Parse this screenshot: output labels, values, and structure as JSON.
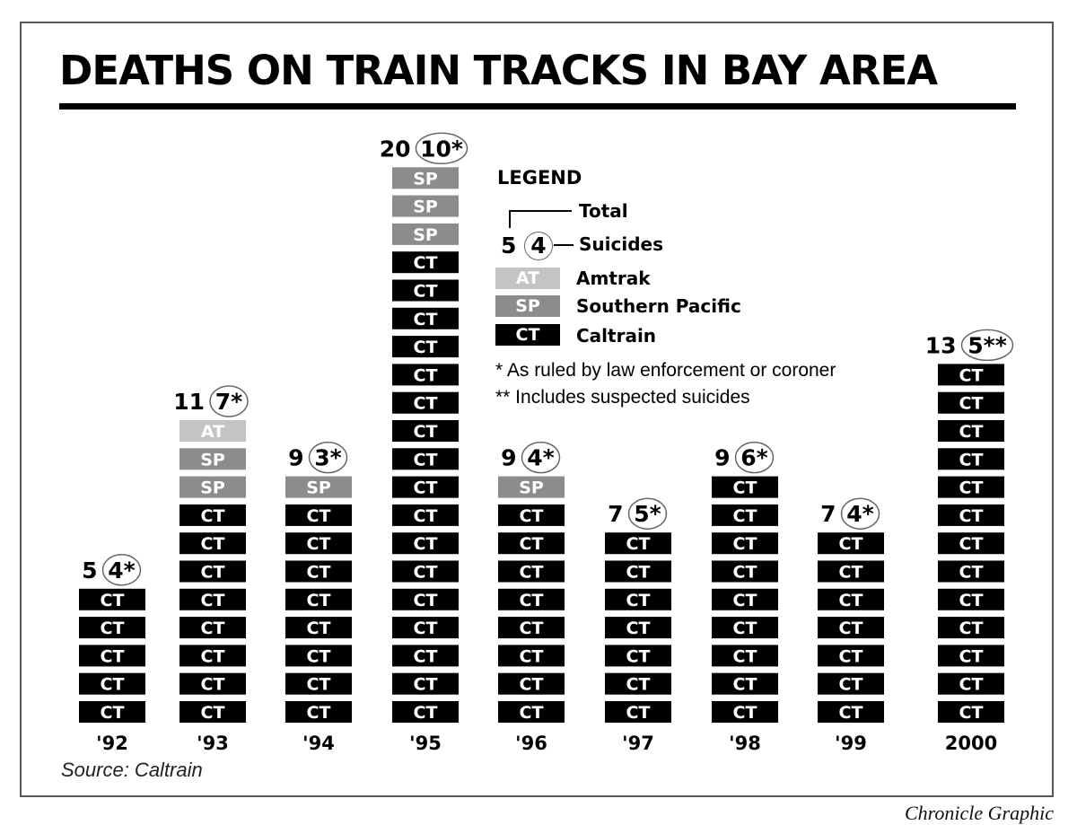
{
  "header": {
    "title": "DEATHS ON TRAIN TRACKS IN BAY AREA"
  },
  "footer": {
    "source": "Source: Caltrain",
    "credit": "Chronicle Graphic"
  },
  "legend": {
    "title": "LEGEND",
    "total_label": "Total",
    "suicides_label": "Suicides",
    "sample_total": "5",
    "sample_suicides": "4",
    "items": [
      {
        "code": "AT",
        "label": "Amtrak"
      },
      {
        "code": "SP",
        "label": "Southern Pacific"
      },
      {
        "code": "CT",
        "label": "Caltrain"
      }
    ],
    "notes": [
      "* As ruled by law enforcement or coroner",
      "** Includes suspected suicides"
    ]
  },
  "colors": {
    "CT": "#000000",
    "SP": "#8c8c8c",
    "AT": "#c4c4c4",
    "text_on_block": "#ffffff"
  },
  "chart_data": {
    "type": "bar",
    "stacked": true,
    "title": "DEATHS ON TRAIN TRACKS IN BAY AREA",
    "categories": [
      "'92",
      "'93",
      "'94",
      "'95",
      "'96",
      "'97",
      "'98",
      "'99",
      "2000"
    ],
    "series": [
      {
        "name": "Caltrain",
        "code": "CT",
        "values": [
          5,
          8,
          8,
          17,
          8,
          7,
          9,
          7,
          13
        ]
      },
      {
        "name": "Southern Pacific",
        "code": "SP",
        "values": [
          0,
          2,
          1,
          3,
          1,
          0,
          0,
          0,
          0
        ]
      },
      {
        "name": "Amtrak",
        "code": "AT",
        "values": [
          0,
          1,
          0,
          0,
          0,
          0,
          0,
          0,
          0
        ]
      }
    ],
    "totals": [
      5,
      11,
      9,
      20,
      9,
      7,
      9,
      7,
      13
    ],
    "suicides": [
      4,
      7,
      3,
      10,
      4,
      5,
      6,
      4,
      5
    ],
    "suicide_labels": [
      "4*",
      "7*",
      "3*",
      "10*",
      "4*",
      "5*",
      "6*",
      "4*",
      "5**"
    ]
  }
}
